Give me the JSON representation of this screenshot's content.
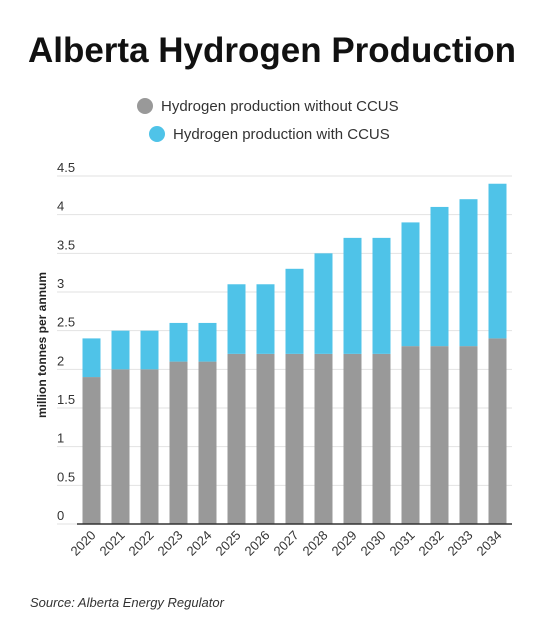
{
  "chart_data": {
    "type": "stacked-bar",
    "title": "Alberta Hydrogen Production",
    "y_label": "million tonnes per annum",
    "categories": [
      "2020",
      "2021",
      "2022",
      "2023",
      "2024",
      "2025",
      "2026",
      "2027",
      "2028",
      "2029",
      "2030",
      "2031",
      "2032",
      "2033",
      "2034"
    ],
    "series": [
      {
        "name": "Hydrogen production without CCUS",
        "color": "#999999",
        "values": [
          1.9,
          2.0,
          2.0,
          2.1,
          2.1,
          2.2,
          2.2,
          2.2,
          2.2,
          2.2,
          2.2,
          2.3,
          2.3,
          2.3,
          2.4
        ]
      },
      {
        "name": "Hydrogen production with CCUS",
        "color": "#4fc3e8",
        "values": [
          0.5,
          0.5,
          0.5,
          0.5,
          0.5,
          0.9,
          0.9,
          1.1,
          1.3,
          1.5,
          1.5,
          1.6,
          1.8,
          1.9,
          2.0
        ]
      }
    ],
    "ylim": [
      0,
      4.5
    ],
    "yticks": [
      0,
      0.5,
      1,
      1.5,
      2,
      2.5,
      3,
      3.5,
      4,
      4.5
    ],
    "grid": true,
    "source": "Source: Alberta Energy Regulator"
  }
}
